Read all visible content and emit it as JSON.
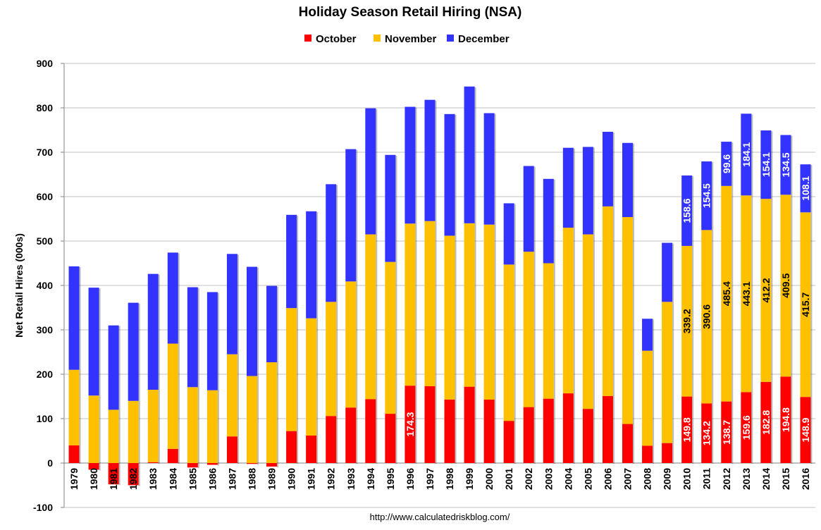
{
  "chart_data": {
    "type": "bar",
    "stacked": true,
    "title": "Holiday Season Retail Hiring (NSA)",
    "ylabel": "Net Retail Hires (000s)",
    "source": "http://www.calculatedriskblog.com/",
    "ylim": [
      -100,
      900
    ],
    "yticks": [
      -100,
      0,
      100,
      200,
      300,
      400,
      500,
      600,
      700,
      800,
      900
    ],
    "grid": true,
    "legend_position": "top-center",
    "categories": [
      "1979",
      "1980",
      "1981",
      "1982",
      "1983",
      "1984",
      "1985",
      "1986",
      "1987",
      "1988",
      "1989",
      "1990",
      "1991",
      "1992",
      "1993",
      "1994",
      "1995",
      "1996",
      "1997",
      "1998",
      "1999",
      "2000",
      "2001",
      "2002",
      "2003",
      "2004",
      "2005",
      "2006",
      "2007",
      "2008",
      "2009",
      "2010",
      "2011",
      "2012",
      "2013",
      "2014",
      "2015",
      "2016"
    ],
    "series": [
      {
        "name": "October",
        "color": "#ff0000",
        "values": [
          40,
          -15,
          -48,
          -50,
          2,
          32,
          -10,
          -4,
          60,
          -2,
          -8,
          72,
          62,
          106,
          125,
          144,
          111,
          174.3,
          173,
          143,
          172,
          143,
          95,
          126,
          145,
          157,
          122,
          151,
          88,
          39,
          45,
          149.8,
          134.2,
          138.7,
          159.6,
          182.8,
          194.8,
          148.9
        ]
      },
      {
        "name": "November",
        "color": "#ffc000",
        "values": [
          170,
          152,
          120,
          140,
          163,
          237,
          171,
          164,
          185,
          196,
          227,
          277,
          264,
          257,
          284,
          371,
          342,
          365,
          372,
          369,
          368,
          394,
          352,
          350,
          305,
          373,
          393,
          427,
          466,
          214,
          318,
          339.2,
          390.6,
          485.4,
          443.1,
          412.2,
          409.5,
          415.7
        ]
      },
      {
        "name": "December",
        "color": "#3333ff",
        "values": [
          233,
          243,
          190,
          221,
          261,
          205,
          225,
          221,
          226,
          246,
          172,
          210,
          241,
          265,
          298,
          284,
          241,
          263,
          273,
          274,
          308,
          251,
          138,
          193,
          190,
          180,
          197,
          168,
          167,
          72,
          133,
          158.6,
          154.5,
          99.6,
          184.1,
          154.1,
          134.5,
          108.1
        ]
      }
    ],
    "data_labels": {
      "October": {
        "1996": "174.3",
        "2010": "149.8",
        "2011": "134.2",
        "2012": "138.7",
        "2013": "159.6",
        "2014": "182.8",
        "2015": "194.8",
        "2016": "148.9"
      },
      "November": {
        "2010": "339.2",
        "2011": "390.6",
        "2012": "485.4",
        "2013": "443.1",
        "2014": "412.2",
        "2015": "409.5",
        "2016": "415.7"
      },
      "December": {
        "2010": "158.6",
        "2011": "154.5",
        "2012": "99.6",
        "2013": "184.1",
        "2014": "154.1",
        "2015": "134.5",
        "2016": "108.1"
      }
    }
  }
}
